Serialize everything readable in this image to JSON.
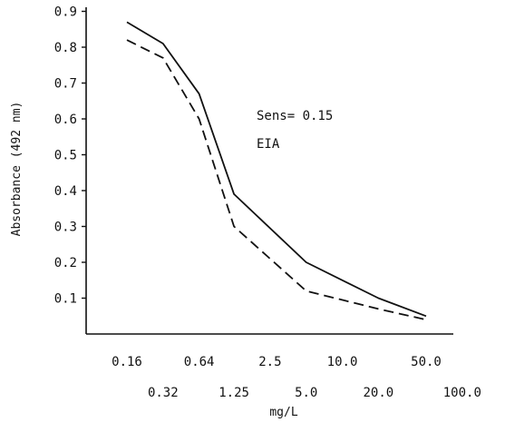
{
  "chart_data": {
    "type": "line",
    "xlabel": "mg/L",
    "ylabel": "Absorbance (492 nm)",
    "ylim": [
      0,
      0.95
    ],
    "y_ticks": [
      "0.1",
      "0.2",
      "0.3",
      "0.4",
      "0.5",
      "0.6",
      "0.7",
      "0.8",
      "0.9"
    ],
    "x_ticks_upper": [
      "0.16",
      "0.64",
      "2.5",
      "10.0",
      "50.0"
    ],
    "x_ticks_lower": [
      "0.32",
      "1.25",
      "5.0",
      "20.0",
      "100.0"
    ],
    "annotations": [
      "Sens= 0.15",
      "EIA"
    ],
    "x": [
      0.16,
      0.32,
      0.64,
      1.25,
      5.0,
      20.0,
      50.0
    ],
    "series": [
      {
        "style": "solid",
        "values": [
          0.87,
          0.81,
          0.67,
          0.39,
          0.2,
          0.1,
          0.05
        ]
      },
      {
        "style": "dashed",
        "values": [
          0.82,
          0.77,
          0.6,
          0.3,
          0.12,
          0.07,
          0.04
        ]
      }
    ],
    "colors": {
      "line": "#111111",
      "axis": "#111111"
    }
  }
}
